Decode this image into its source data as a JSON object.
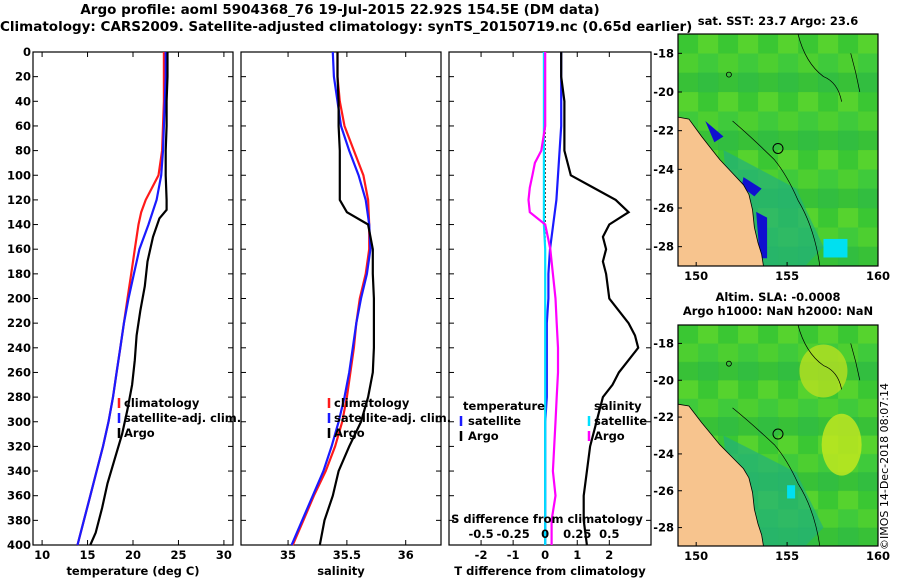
{
  "title": {
    "line1": "Argo profile: aoml 5904368_76 19-Jul-2015 22.92S 154.5E (DM data)",
    "line2": "Climatology: CARS2009. Satellite-adjusted climatology: synTS_20150719.nc (0.65d earlier)"
  },
  "colors": {
    "climatology": "#ff1a1a",
    "satellite": "#1a1aff",
    "argo": "#000000",
    "sat_salinity": "#00e0ff",
    "argo_salinity": "#ff00ff",
    "land": "#f7c48e",
    "sea_green": "#33cc33",
    "sea_deep": "#1010d0",
    "coast": "#000000"
  },
  "stamp": "©IMOS 14-Dec-2018 08:07:14",
  "chart_data": [
    {
      "id": "temperature",
      "type": "line",
      "xlabel": "temperature (deg C)",
      "ylabel": "",
      "xlim": [
        9,
        31
      ],
      "ylim": [
        400,
        0
      ],
      "xticks": [
        "10",
        "15",
        "20",
        "25",
        "30"
      ],
      "yticks": [
        "0",
        "20",
        "40",
        "60",
        "80",
        "100",
        "120",
        "140",
        "160",
        "180",
        "200",
        "220",
        "240",
        "260",
        "280",
        "300",
        "320",
        "340",
        "360",
        "380",
        "400"
      ],
      "legend": {
        "position": "right-middle",
        "entries": [
          "climatology",
          "satellite-adj. clim.",
          "Argo"
        ]
      },
      "series": [
        {
          "name": "climatology",
          "color": "#ff1a1a",
          "depth": [
            0,
            20,
            40,
            60,
            80,
            100,
            110,
            120,
            130,
            140,
            160,
            180,
            200,
            220,
            240,
            260,
            280,
            300,
            320,
            340,
            360,
            380,
            400
          ],
          "values": [
            23.4,
            23.4,
            23.4,
            23.3,
            23.2,
            22.8,
            22.1,
            21.4,
            20.9,
            20.6,
            20.2,
            19.8,
            19.4,
            19.0,
            18.6,
            18.2,
            17.8,
            17.3,
            16.7,
            16.0,
            15.3,
            14.6,
            13.9
          ]
        },
        {
          "name": "satellite-adj. clim.",
          "color": "#1a1aff",
          "depth": [
            0,
            20,
            40,
            60,
            80,
            100,
            120,
            140,
            160,
            180,
            200,
            220,
            240,
            260,
            280,
            300,
            320,
            340,
            360,
            380,
            400
          ],
          "values": [
            23.6,
            23.6,
            23.5,
            23.4,
            23.3,
            23.1,
            22.6,
            21.7,
            20.7,
            20.1,
            19.5,
            19.0,
            18.6,
            18.2,
            17.8,
            17.3,
            16.7,
            16.0,
            15.3,
            14.6,
            13.9
          ]
        },
        {
          "name": "Argo",
          "color": "#000000",
          "depth": [
            0,
            20,
            40,
            60,
            80,
            100,
            120,
            128,
            135,
            150,
            170,
            190,
            210,
            230,
            250,
            270,
            290,
            310,
            330,
            350,
            370,
            390,
            400
          ],
          "values": [
            23.8,
            23.8,
            23.7,
            23.7,
            23.6,
            23.6,
            23.7,
            23.7,
            22.9,
            22.2,
            21.6,
            21.3,
            20.8,
            20.4,
            20.2,
            19.9,
            19.4,
            18.8,
            18.0,
            17.2,
            16.6,
            15.9,
            15.3
          ]
        }
      ]
    },
    {
      "id": "salinity",
      "type": "line",
      "xlabel": "salinity",
      "ylabel": "",
      "xlim": [
        34.6,
        36.3
      ],
      "ylim": [
        400,
        0
      ],
      "xticks": [
        "35",
        "35.5",
        "36"
      ],
      "legend": {
        "position": "right-middle",
        "entries": [
          "climatology",
          "satellite-adj. clim.",
          "Argo"
        ]
      },
      "series": [
        {
          "name": "climatology",
          "color": "#ff1a1a",
          "depth": [
            0,
            20,
            40,
            60,
            80,
            100,
            120,
            140,
            160,
            180,
            200,
            220,
            240,
            260,
            280,
            300,
            320,
            340,
            360,
            380,
            400
          ],
          "values": [
            35.42,
            35.42,
            35.44,
            35.48,
            35.56,
            35.64,
            35.68,
            35.69,
            35.69,
            35.66,
            35.61,
            35.58,
            35.56,
            35.53,
            35.5,
            35.46,
            35.4,
            35.32,
            35.22,
            35.13,
            35.04
          ]
        },
        {
          "name": "satellite-adj. clim.",
          "color": "#1a1aff",
          "depth": [
            0,
            20,
            40,
            60,
            80,
            100,
            120,
            140,
            160,
            180,
            200,
            220,
            240,
            260,
            280,
            300,
            320,
            340,
            360,
            380,
            400
          ],
          "values": [
            35.38,
            35.39,
            35.42,
            35.45,
            35.52,
            35.6,
            35.66,
            35.69,
            35.7,
            35.67,
            35.62,
            35.58,
            35.55,
            35.52,
            35.48,
            35.43,
            35.37,
            35.3,
            35.21,
            35.12,
            35.03
          ]
        },
        {
          "name": "Argo",
          "color": "#000000",
          "depth": [
            0,
            20,
            40,
            60,
            80,
            100,
            120,
            130,
            140,
            160,
            180,
            200,
            220,
            240,
            260,
            280,
            300,
            320,
            340,
            360,
            380,
            400
          ],
          "values": [
            35.42,
            35.42,
            35.43,
            35.43,
            35.44,
            35.44,
            35.44,
            35.5,
            35.68,
            35.72,
            35.72,
            35.73,
            35.73,
            35.73,
            35.72,
            35.68,
            35.62,
            35.52,
            35.43,
            35.38,
            35.31,
            35.27
          ]
        }
      ]
    },
    {
      "id": "difference",
      "type": "line",
      "xlabel": "T difference from climatology",
      "xlabel_top": "S difference from climatology",
      "xlim": [
        -3,
        3.3
      ],
      "ylim": [
        400,
        0
      ],
      "xticks": [
        "-2",
        "-1",
        "0",
        "1",
        "2"
      ],
      "xticks_top": [
        "-0.5",
        "-0.25",
        "0",
        "0.25",
        "0.5"
      ],
      "legend_temperature": {
        "title": "temperature",
        "position": "left-middle",
        "entries": [
          "satellite",
          "Argo"
        ]
      },
      "legend_salinity": {
        "title": "salinity",
        "position": "right-middle",
        "entries": [
          "satellite",
          "Argo"
        ]
      },
      "series": [
        {
          "name": "T satellite",
          "color": "#1a1aff",
          "depth": [
            0,
            20,
            40,
            60,
            80,
            100,
            120,
            140,
            160,
            180,
            200,
            220,
            240,
            260,
            280,
            300,
            320,
            340,
            360,
            380,
            400
          ],
          "values": [
            0.5,
            0.5,
            0.5,
            0.5,
            0.45,
            0.4,
            0.35,
            0.25,
            0.15,
            0.1,
            0.1,
            0.05,
            0.05,
            0.05,
            0.05,
            0.0,
            0.0,
            0.0,
            0.0,
            0.0,
            0.0
          ]
        },
        {
          "name": "T Argo",
          "color": "#000000",
          "depth": [
            0,
            20,
            40,
            60,
            80,
            100,
            110,
            120,
            130,
            140,
            150,
            160,
            170,
            180,
            200,
            210,
            220,
            230,
            240,
            250,
            260,
            270,
            280,
            300,
            320,
            340,
            360,
            380,
            400
          ],
          "values": [
            0.5,
            0.5,
            0.6,
            0.6,
            0.6,
            0.8,
            1.5,
            2.2,
            2.6,
            2.0,
            1.8,
            1.9,
            1.8,
            1.9,
            2.0,
            2.3,
            2.6,
            2.8,
            2.9,
            2.6,
            2.3,
            2.1,
            1.8,
            1.6,
            1.4,
            1.3,
            1.2,
            1.2,
            1.3
          ]
        },
        {
          "name": "S satellite",
          "color": "#00e0ff",
          "depth": [
            0,
            20,
            40,
            60,
            80,
            100,
            120,
            140,
            160,
            180,
            200,
            220,
            240,
            260,
            280,
            300,
            320,
            340,
            360,
            380,
            400
          ],
          "values": [
            -0.01,
            -0.01,
            -0.01,
            -0.01,
            -0.01,
            -0.01,
            -0.01,
            -0.01,
            0,
            0,
            0,
            0,
            0,
            0,
            0,
            0,
            0,
            0,
            0,
            0,
            0
          ]
        },
        {
          "name": "S Argo",
          "color": "#ff00ff",
          "depth": [
            0,
            60,
            80,
            90,
            100,
            110,
            120,
            130,
            140,
            150,
            160,
            180,
            200,
            220,
            240,
            260,
            280,
            300,
            320,
            340,
            360,
            380,
            400
          ],
          "values": [
            0,
            0,
            -0.03,
            -0.08,
            -0.1,
            -0.12,
            -0.13,
            -0.12,
            0.0,
            0.02,
            0.04,
            0.06,
            0.08,
            0.09,
            0.1,
            0.1,
            0.09,
            0.08,
            0.07,
            0.06,
            0.08,
            0.05,
            0.05
          ]
        }
      ]
    },
    {
      "id": "sst-map",
      "type": "heatmap",
      "title": "sat. SST: 23.7 Argo: 23.6",
      "xlim": [
        149,
        160
      ],
      "ylim": [
        -29,
        -17
      ],
      "xticks": [
        "150",
        "155",
        "160"
      ],
      "yticks": [
        "-18",
        "-20",
        "-22",
        "-24",
        "-26",
        "-28"
      ],
      "argo_position": [
        154.5,
        -22.92
      ]
    },
    {
      "id": "sla-map",
      "type": "heatmap",
      "title": "Altim. SLA: -0.0008",
      "subtitle": "Argo h1000: NaN h2000: NaN",
      "xlim": [
        149,
        160
      ],
      "ylim": [
        -29,
        -17
      ],
      "xticks": [
        "150",
        "155",
        "160"
      ],
      "yticks": [
        "-18",
        "-20",
        "-22",
        "-24",
        "-26",
        "-28"
      ],
      "argo_position": [
        154.5,
        -22.92
      ]
    }
  ]
}
